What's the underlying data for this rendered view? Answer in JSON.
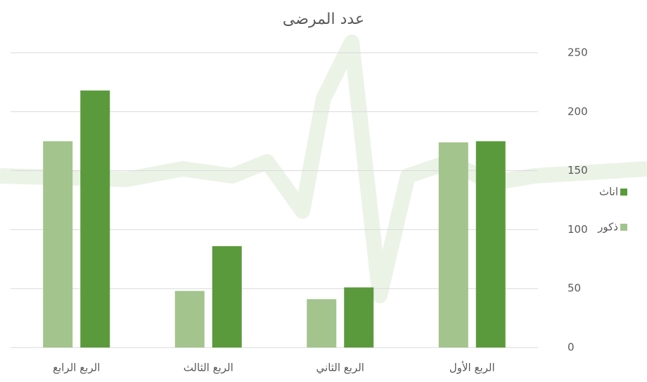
{
  "chart_data": {
    "type": "bar",
    "title": "عدد المرضى",
    "categories": [
      "الربع الأول",
      "الربع الثاني",
      "الربع الثالث",
      "الربع الرابع"
    ],
    "series": [
      {
        "name": "ذكور",
        "color": "#a3c48d",
        "values": [
          174,
          41,
          48,
          175
        ]
      },
      {
        "name": "اناث",
        "color": "#5b9a3c",
        "values": [
          175,
          51,
          86,
          218
        ]
      }
    ],
    "ylim": [
      0,
      250
    ],
    "yticks": [
      0,
      50,
      100,
      150,
      200,
      250
    ],
    "grid": true,
    "rtl": true,
    "legend": "right"
  }
}
